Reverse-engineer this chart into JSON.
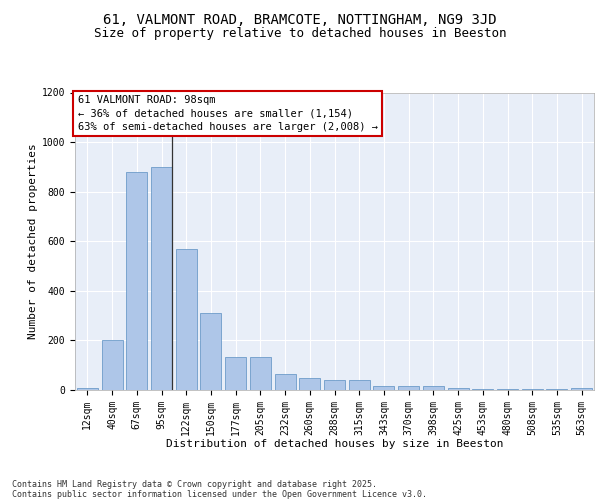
{
  "title1": "61, VALMONT ROAD, BRAMCOTE, NOTTINGHAM, NG9 3JD",
  "title2": "Size of property relative to detached houses in Beeston",
  "xlabel": "Distribution of detached houses by size in Beeston",
  "ylabel": "Number of detached properties",
  "categories": [
    "12sqm",
    "40sqm",
    "67sqm",
    "95sqm",
    "122sqm",
    "150sqm",
    "177sqm",
    "205sqm",
    "232sqm",
    "260sqm",
    "288sqm",
    "315sqm",
    "343sqm",
    "370sqm",
    "398sqm",
    "425sqm",
    "453sqm",
    "480sqm",
    "508sqm",
    "535sqm",
    "563sqm"
  ],
  "values": [
    10,
    200,
    880,
    900,
    570,
    310,
    135,
    135,
    65,
    50,
    40,
    40,
    15,
    15,
    15,
    10,
    5,
    5,
    5,
    5,
    10
  ],
  "bar_color": "#aec6e8",
  "bar_edge_color": "#5a8fc2",
  "background_color": "#e8eef8",
  "grid_color": "#ffffff",
  "annotation_text": "61 VALMONT ROAD: 98sqm\n← 36% of detached houses are smaller (1,154)\n63% of semi-detached houses are larger (2,008) →",
  "annotation_box_color": "#ffffff",
  "annotation_box_edge": "#cc0000",
  "vline_color": "#333333",
  "ylim": [
    0,
    1200
  ],
  "yticks": [
    0,
    200,
    400,
    600,
    800,
    1000,
    1200
  ],
  "footnote": "Contains HM Land Registry data © Crown copyright and database right 2025.\nContains public sector information licensed under the Open Government Licence v3.0.",
  "title1_fontsize": 10,
  "title2_fontsize": 9,
  "label_fontsize": 8,
  "tick_fontsize": 7,
  "annot_fontsize": 7.5,
  "footnote_fontsize": 6
}
